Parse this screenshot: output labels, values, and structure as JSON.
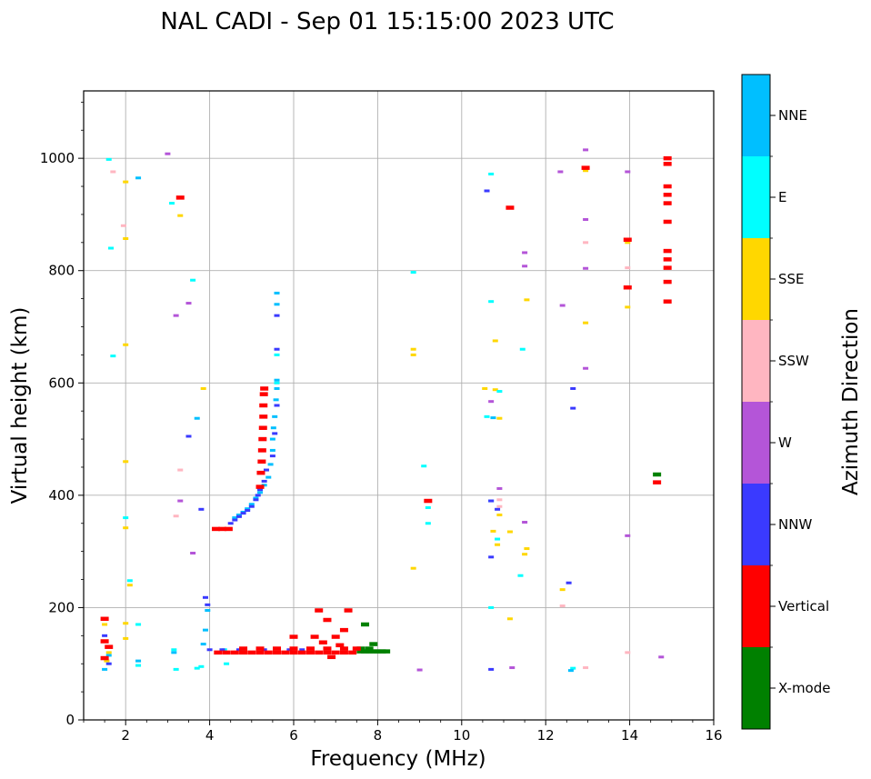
{
  "chart_data": {
    "type": "scatter",
    "title": "NAL CADI - Sep 01 15:15:00 2023 UTC",
    "xlabel": "Frequency (MHz)",
    "ylabel": "Virtual height (km)",
    "xlim": [
      1,
      16
    ],
    "ylim": [
      0,
      1120
    ],
    "xticks": [
      2,
      4,
      6,
      8,
      10,
      12,
      14,
      16
    ],
    "yticks": [
      0,
      200,
      400,
      600,
      800,
      1000
    ],
    "grid": true,
    "colorbar": {
      "label": "Azimuth Direction",
      "categories": [
        {
          "name": "X-mode",
          "color": "#008000"
        },
        {
          "name": "Vertical",
          "color": "#ff0000"
        },
        {
          "name": "NNW",
          "color": "#3a3aff"
        },
        {
          "name": "W",
          "color": "#b455d8"
        },
        {
          "name": "SSW",
          "color": "#ffb6c1"
        },
        {
          "name": "SSE",
          "color": "#ffd700"
        },
        {
          "name": "E",
          "color": "#00ffff"
        },
        {
          "name": "NNE",
          "color": "#00bfff"
        }
      ]
    },
    "series": [
      {
        "name": "X-mode",
        "points": [
          [
            7.6,
            122
          ],
          [
            7.7,
            122
          ],
          [
            7.8,
            122
          ],
          [
            7.9,
            122
          ],
          [
            8.0,
            122
          ],
          [
            8.1,
            122
          ],
          [
            8.2,
            122
          ],
          [
            7.6,
            127
          ],
          [
            7.8,
            127
          ],
          [
            7.7,
            170
          ],
          [
            7.9,
            135
          ],
          [
            14.65,
            437
          ]
        ]
      },
      {
        "name": "Vertical",
        "points": [
          [
            4.2,
            120
          ],
          [
            4.4,
            120
          ],
          [
            4.6,
            120
          ],
          [
            4.8,
            120
          ],
          [
            5.0,
            120
          ],
          [
            5.2,
            120
          ],
          [
            5.4,
            120
          ],
          [
            5.6,
            120
          ],
          [
            5.8,
            120
          ],
          [
            6.0,
            120
          ],
          [
            6.2,
            120
          ],
          [
            6.4,
            120
          ],
          [
            6.6,
            120
          ],
          [
            6.8,
            120
          ],
          [
            7.0,
            120
          ],
          [
            7.2,
            120
          ],
          [
            7.4,
            120
          ],
          [
            4.8,
            127
          ],
          [
            5.2,
            127
          ],
          [
            5.6,
            127
          ],
          [
            6.0,
            127
          ],
          [
            6.4,
            127
          ],
          [
            6.8,
            127
          ],
          [
            7.2,
            127
          ],
          [
            7.5,
            127
          ],
          [
            6.6,
            195
          ],
          [
            7.3,
            195
          ],
          [
            6.8,
            178
          ],
          [
            7.2,
            160
          ],
          [
            6.0,
            148
          ],
          [
            6.5,
            148
          ],
          [
            7.0,
            148
          ],
          [
            6.7,
            138
          ],
          [
            7.1,
            133
          ],
          [
            6.9,
            112
          ],
          [
            4.15,
            340
          ],
          [
            4.3,
            340
          ],
          [
            4.45,
            340
          ],
          [
            5.2,
            415
          ],
          [
            5.22,
            440
          ],
          [
            5.24,
            460
          ],
          [
            5.25,
            480
          ],
          [
            5.26,
            500
          ],
          [
            5.27,
            520
          ],
          [
            5.28,
            540
          ],
          [
            5.28,
            560
          ],
          [
            5.29,
            580
          ],
          [
            5.3,
            590
          ],
          [
            3.3,
            930
          ],
          [
            14.9,
            1000
          ],
          [
            14.9,
            990
          ],
          [
            14.9,
            950
          ],
          [
            14.9,
            935
          ],
          [
            14.9,
            920
          ],
          [
            14.9,
            835
          ],
          [
            14.9,
            820
          ],
          [
            14.9,
            805
          ],
          [
            14.9,
            780
          ],
          [
            14.9,
            887
          ],
          [
            14.9,
            745
          ],
          [
            13.95,
            770
          ],
          [
            13.95,
            855
          ],
          [
            14.65,
            423
          ],
          [
            9.2,
            390
          ],
          [
            12.95,
            983
          ],
          [
            11.15,
            912
          ],
          [
            1.5,
            180
          ],
          [
            1.5,
            140
          ],
          [
            1.5,
            110
          ],
          [
            1.6,
            130
          ]
        ]
      },
      {
        "name": "NNW",
        "points": [
          [
            4.5,
            350
          ],
          [
            4.6,
            356
          ],
          [
            4.7,
            362
          ],
          [
            4.8,
            368
          ],
          [
            4.9,
            373
          ],
          [
            5.0,
            380
          ],
          [
            5.1,
            392
          ],
          [
            5.15,
            400
          ],
          [
            5.2,
            410
          ],
          [
            5.3,
            425
          ],
          [
            5.35,
            445
          ],
          [
            5.5,
            470
          ],
          [
            5.55,
            510
          ],
          [
            5.6,
            560
          ],
          [
            5.6,
            660
          ],
          [
            5.6,
            720
          ],
          [
            4.0,
            125
          ],
          [
            4.3,
            125
          ],
          [
            4.7,
            125
          ],
          [
            5.3,
            125
          ],
          [
            5.9,
            125
          ],
          [
            6.2,
            125
          ],
          [
            3.8,
            375
          ],
          [
            3.5,
            505
          ],
          [
            3.9,
            218
          ],
          [
            3.95,
            205
          ],
          [
            10.6,
            942
          ],
          [
            10.7,
            390
          ],
          [
            10.7,
            290
          ],
          [
            10.7,
            90
          ],
          [
            10.85,
            375
          ],
          [
            12.55,
            244
          ],
          [
            12.65,
            590
          ],
          [
            12.65,
            555
          ],
          [
            1.5,
            150
          ],
          [
            1.6,
            100
          ]
        ]
      },
      {
        "name": "W",
        "points": [
          [
            3.0,
            1008
          ],
          [
            3.2,
            720
          ],
          [
            3.3,
            390
          ],
          [
            3.5,
            742
          ],
          [
            3.6,
            297
          ],
          [
            9.0,
            89
          ],
          [
            10.7,
            567
          ],
          [
            10.9,
            412
          ],
          [
            11.5,
            352
          ],
          [
            11.5,
            832
          ],
          [
            11.5,
            808
          ],
          [
            12.35,
            976
          ],
          [
            12.4,
            738
          ],
          [
            12.95,
            1015
          ],
          [
            12.95,
            891
          ],
          [
            12.95,
            804
          ],
          [
            12.95,
            626
          ],
          [
            13.95,
            976
          ],
          [
            13.95,
            328
          ],
          [
            14.75,
            112
          ],
          [
            11.2,
            93
          ]
        ]
      },
      {
        "name": "SSW",
        "points": [
          [
            1.7,
            976
          ],
          [
            1.95,
            880
          ],
          [
            3.3,
            445
          ],
          [
            3.2,
            363
          ],
          [
            10.9,
            392
          ],
          [
            10.9,
            380
          ],
          [
            12.4,
            203
          ],
          [
            12.95,
            850
          ],
          [
            13.95,
            805
          ],
          [
            12.95,
            93
          ],
          [
            13.95,
            120
          ]
        ]
      },
      {
        "name": "SSE",
        "points": [
          [
            2.0,
            958
          ],
          [
            2.0,
            857
          ],
          [
            2.0,
            668
          ],
          [
            2.0,
            460
          ],
          [
            2.0,
            342
          ],
          [
            2.0,
            172
          ],
          [
            2.0,
            145
          ],
          [
            2.1,
            240
          ],
          [
            3.3,
            898
          ],
          [
            3.85,
            590
          ],
          [
            8.85,
            660
          ],
          [
            8.85,
            650
          ],
          [
            8.85,
            270
          ],
          [
            10.55,
            590
          ],
          [
            10.75,
            336
          ],
          [
            10.8,
            675
          ],
          [
            10.8,
            588
          ],
          [
            10.9,
            537
          ],
          [
            10.85,
            312
          ],
          [
            10.9,
            365
          ],
          [
            11.15,
            335
          ],
          [
            11.15,
            180
          ],
          [
            11.5,
            295
          ],
          [
            11.55,
            305
          ],
          [
            11.55,
            748
          ],
          [
            12.4,
            232
          ],
          [
            12.95,
            978
          ],
          [
            12.95,
            707
          ],
          [
            13.95,
            850
          ],
          [
            13.95,
            735
          ],
          [
            1.5,
            170
          ],
          [
            1.6,
            120
          ],
          [
            1.55,
            105
          ]
        ]
      },
      {
        "name": "E",
        "points": [
          [
            1.6,
            998
          ],
          [
            1.65,
            840
          ],
          [
            1.7,
            648
          ],
          [
            2.0,
            360
          ],
          [
            2.1,
            248
          ],
          [
            2.3,
            170
          ],
          [
            2.3,
            97
          ],
          [
            3.1,
            920
          ],
          [
            3.15,
            125
          ],
          [
            3.2,
            90
          ],
          [
            3.6,
            783
          ],
          [
            3.7,
            92
          ],
          [
            3.8,
            95
          ],
          [
            4.4,
            100
          ],
          [
            4.35,
            125
          ],
          [
            4.8,
            125
          ],
          [
            5.6,
            650
          ],
          [
            5.6,
            600
          ],
          [
            8.85,
            797
          ],
          [
            9.1,
            452
          ],
          [
            9.2,
            378
          ],
          [
            9.2,
            350
          ],
          [
            10.6,
            540
          ],
          [
            10.7,
            972
          ],
          [
            10.7,
            745
          ],
          [
            10.7,
            200
          ],
          [
            10.85,
            322
          ],
          [
            10.9,
            585
          ],
          [
            11.45,
            660
          ],
          [
            11.4,
            257
          ],
          [
            12.65,
            92
          ]
        ]
      },
      {
        "name": "NNE",
        "points": [
          [
            4.6,
            360
          ],
          [
            4.7,
            365
          ],
          [
            4.8,
            370
          ],
          [
            4.9,
            376
          ],
          [
            5.0,
            384
          ],
          [
            5.1,
            395
          ],
          [
            5.2,
            405
          ],
          [
            5.3,
            418
          ],
          [
            5.4,
            432
          ],
          [
            5.45,
            455
          ],
          [
            5.5,
            480
          ],
          [
            5.5,
            500
          ],
          [
            5.52,
            520
          ],
          [
            5.55,
            540
          ],
          [
            5.58,
            570
          ],
          [
            5.6,
            590
          ],
          [
            5.6,
            605
          ],
          [
            5.6,
            740
          ],
          [
            5.6,
            760
          ],
          [
            3.95,
            195
          ],
          [
            3.9,
            160
          ],
          [
            3.85,
            135
          ],
          [
            2.3,
            965
          ],
          [
            3.7,
            537
          ],
          [
            2.3,
            105
          ],
          [
            3.15,
            120
          ],
          [
            10.7,
            390
          ],
          [
            10.75,
            538
          ],
          [
            12.6,
            88
          ],
          [
            4.4,
            120
          ],
          [
            1.5,
            90
          ],
          [
            1.6,
            115
          ]
        ]
      }
    ]
  }
}
